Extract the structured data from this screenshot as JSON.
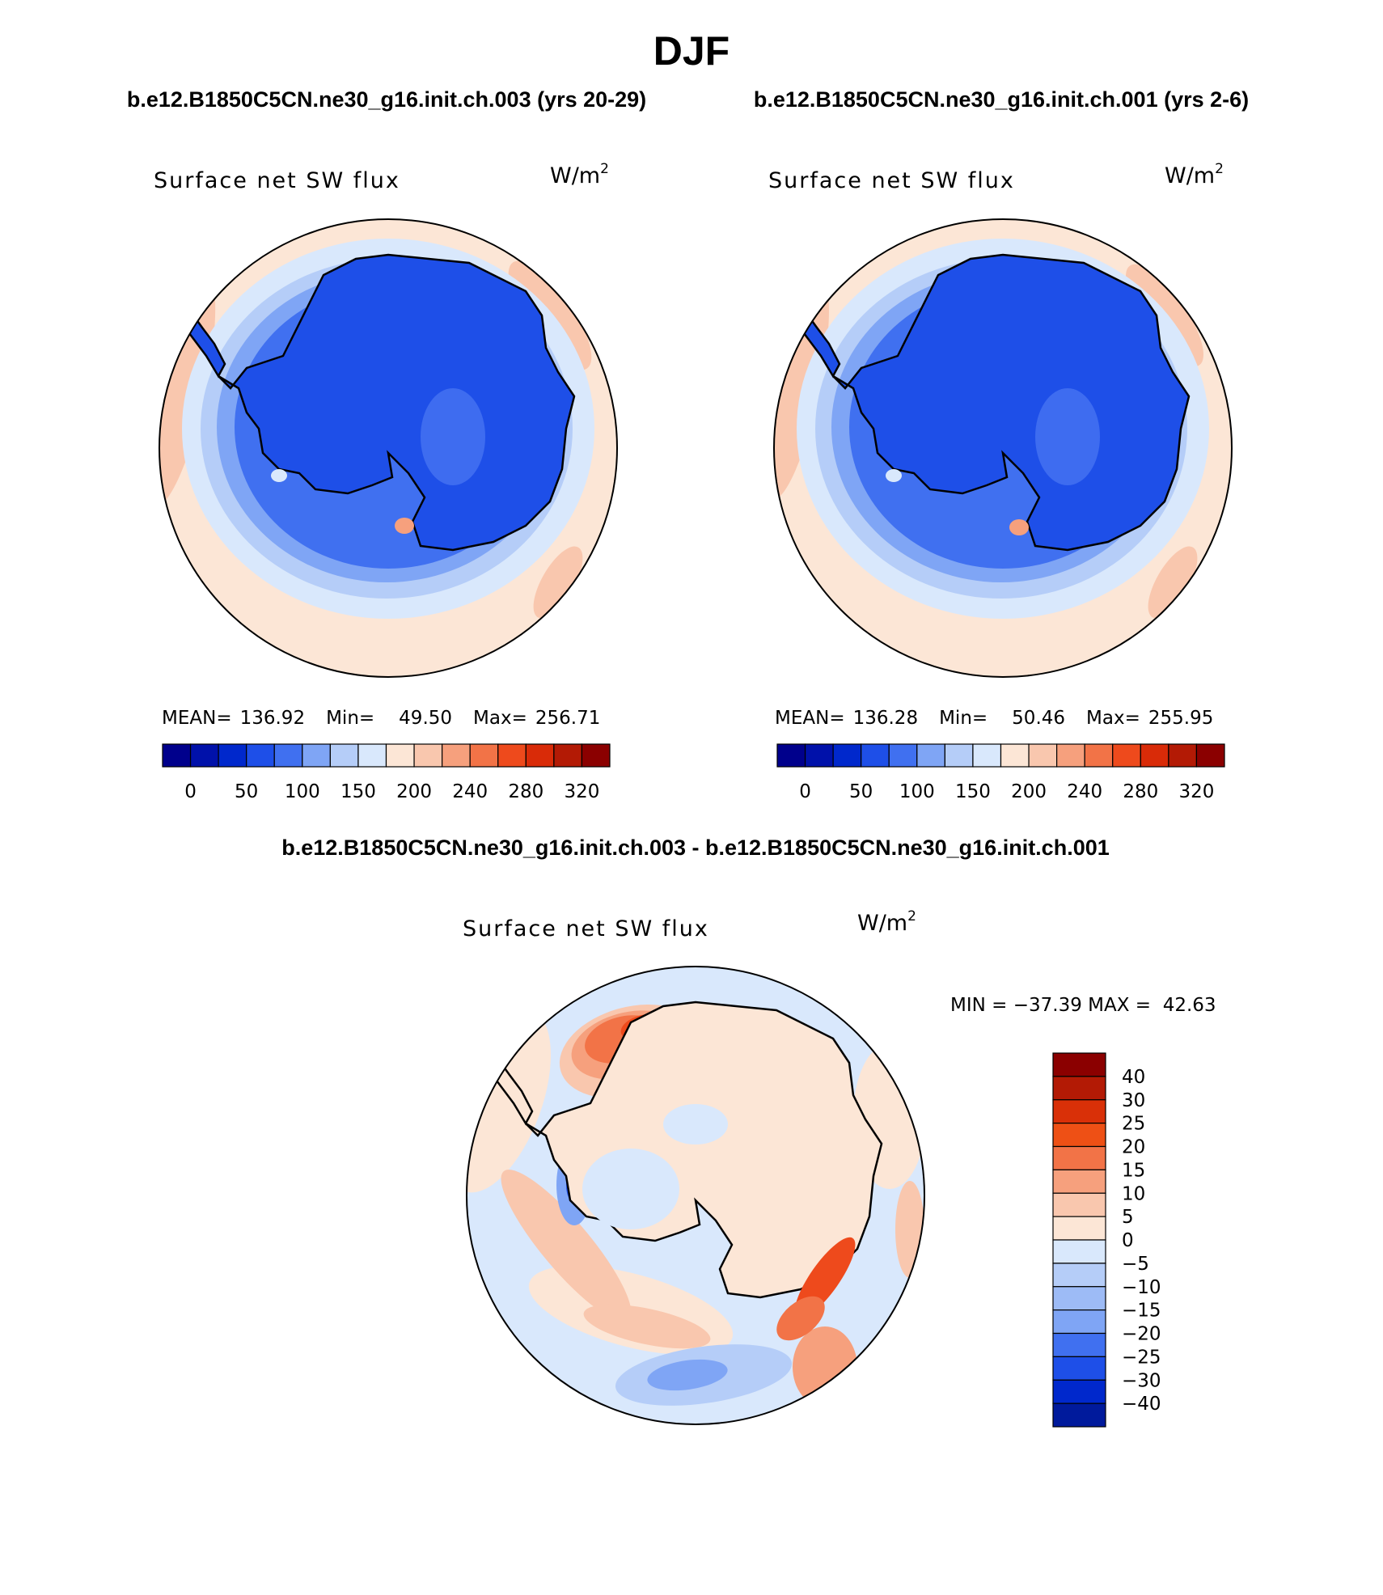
{
  "page_title": "DJF",
  "panels": [
    {
      "id": "case",
      "header": "b.e12.B1850C5CN.ne30_g16.init.ch.003 (yrs 20-29)",
      "variable": "Surface net SW flux",
      "units_base": "W/m",
      "units_exp": "2",
      "stats": {
        "mean_label": "MEAN=",
        "mean": "136.92",
        "min_label": "Min=",
        "min": "49.50",
        "max_label": "Max=",
        "max": "256.71"
      }
    },
    {
      "id": "control",
      "header": "b.e12.B1850C5CN.ne30_g16.init.ch.001 (yrs 2-6)",
      "variable": "Surface net SW flux",
      "units_base": "W/m",
      "units_exp": "2",
      "stats": {
        "mean_label": "MEAN=",
        "mean": "136.28",
        "min_label": "Min=",
        "min": "50.46",
        "max_label": "Max=",
        "max": "255.95"
      }
    }
  ],
  "diff_panel": {
    "header": "b.e12.B1850C5CN.ne30_g16.init.ch.003 - b.e12.B1850C5CN.ne30_g16.init.ch.001",
    "variable": "Surface net SW flux",
    "units_base": "W/m",
    "units_exp": "2",
    "minmax": "MIN = −37.39 MAX =  42.63"
  },
  "colorbar_main": {
    "colors": [
      "#00008c",
      "#0011aa",
      "#0028cc",
      "#1e4fe8",
      "#4070f0",
      "#7fa5f5",
      "#b5cdf8",
      "#d9e8fc",
      "#fce6d6",
      "#f9c7ae",
      "#f6a07d",
      "#f27347",
      "#ee4a1c",
      "#d92b08",
      "#b31a05",
      "#8b0000"
    ],
    "labels": [
      "0",
      "50",
      "100",
      "150",
      "200",
      "240",
      "280",
      "320"
    ]
  },
  "colorbar_diff": {
    "colors": [
      "#8b0000",
      "#b31a05",
      "#d93008",
      "#ee5015",
      "#f27347",
      "#f6a07d",
      "#f9c7ae",
      "#fce6d6",
      "#d9e8fc",
      "#b5cdf8",
      "#9dbbf6",
      "#7fa5f5",
      "#4070f0",
      "#1e4fe8",
      "#0028cc",
      "#001a9c"
    ],
    "labels": [
      "40",
      "30",
      "25",
      "20",
      "15",
      "10",
      "5",
      "0",
      "−5",
      "−10",
      "−15",
      "−20",
      "−25",
      "−30",
      "−40"
    ]
  }
}
